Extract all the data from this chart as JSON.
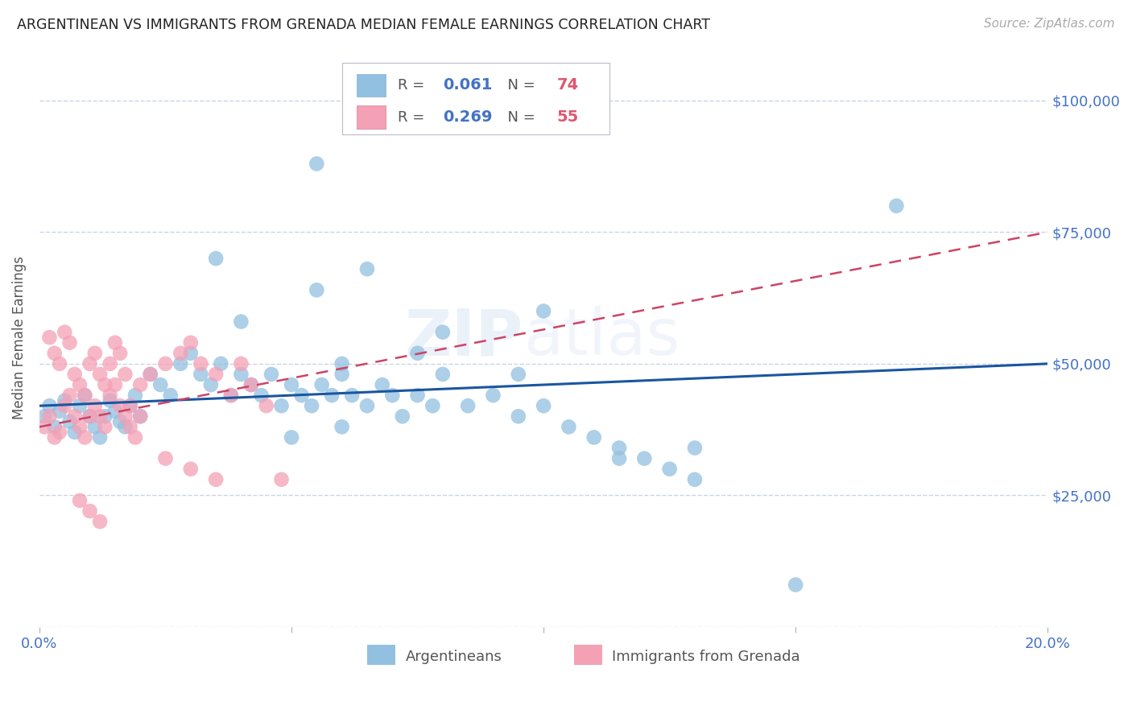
{
  "title": "ARGENTINEAN VS IMMIGRANTS FROM GRENADA MEDIAN FEMALE EARNINGS CORRELATION CHART",
  "source": "Source: ZipAtlas.com",
  "ylabel_label": "Median Female Earnings",
  "x_min": 0.0,
  "x_max": 0.2,
  "y_min": 0,
  "y_max": 110000,
  "blue_R": "0.061",
  "blue_N": "74",
  "pink_R": "0.269",
  "pink_N": "55",
  "blue_color": "#92c0e0",
  "pink_color": "#f4a0b5",
  "blue_line_color": "#1a56a0",
  "pink_line_color": "#cc4466",
  "tick_label_color": "#4472c4",
  "grid_color": "#c8d4e8",
  "background_color": "#ffffff",
  "blue_x": [
    0.001,
    0.002,
    0.003,
    0.004,
    0.005,
    0.006,
    0.007,
    0.008,
    0.009,
    0.01,
    0.011,
    0.012,
    0.013,
    0.014,
    0.015,
    0.016,
    0.017,
    0.018,
    0.019,
    0.02,
    0.022,
    0.024,
    0.026,
    0.028,
    0.03,
    0.032,
    0.034,
    0.036,
    0.038,
    0.04,
    0.042,
    0.044,
    0.046,
    0.048,
    0.05,
    0.052,
    0.054,
    0.056,
    0.058,
    0.06,
    0.062,
    0.065,
    0.068,
    0.07,
    0.072,
    0.075,
    0.078,
    0.08,
    0.085,
    0.09,
    0.095,
    0.1,
    0.105,
    0.11,
    0.115,
    0.12,
    0.125,
    0.13,
    0.05,
    0.06,
    0.055,
    0.065,
    0.035,
    0.04,
    0.08,
    0.1,
    0.17,
    0.055,
    0.06,
    0.075,
    0.095,
    0.115,
    0.13,
    0.15
  ],
  "blue_y": [
    40000,
    42000,
    38000,
    41000,
    43000,
    39000,
    37000,
    42000,
    44000,
    40000,
    38000,
    36000,
    40000,
    43000,
    41000,
    39000,
    38000,
    42000,
    44000,
    40000,
    48000,
    46000,
    44000,
    50000,
    52000,
    48000,
    46000,
    50000,
    44000,
    48000,
    46000,
    44000,
    48000,
    42000,
    46000,
    44000,
    42000,
    46000,
    44000,
    48000,
    44000,
    42000,
    46000,
    44000,
    40000,
    44000,
    42000,
    48000,
    42000,
    44000,
    40000,
    42000,
    38000,
    36000,
    34000,
    32000,
    30000,
    34000,
    36000,
    38000,
    64000,
    68000,
    70000,
    58000,
    56000,
    60000,
    80000,
    88000,
    50000,
    52000,
    48000,
    32000,
    28000,
    8000
  ],
  "pink_x": [
    0.001,
    0.002,
    0.003,
    0.004,
    0.005,
    0.006,
    0.007,
    0.008,
    0.009,
    0.01,
    0.011,
    0.012,
    0.013,
    0.014,
    0.015,
    0.016,
    0.017,
    0.018,
    0.019,
    0.02,
    0.002,
    0.003,
    0.004,
    0.005,
    0.006,
    0.007,
    0.008,
    0.009,
    0.01,
    0.011,
    0.012,
    0.013,
    0.014,
    0.015,
    0.016,
    0.017,
    0.018,
    0.02,
    0.022,
    0.025,
    0.028,
    0.03,
    0.032,
    0.035,
    0.038,
    0.04,
    0.042,
    0.045,
    0.048,
    0.025,
    0.03,
    0.035,
    0.008,
    0.01,
    0.012
  ],
  "pink_y": [
    38000,
    40000,
    36000,
    37000,
    42000,
    44000,
    40000,
    38000,
    36000,
    40000,
    42000,
    40000,
    38000,
    44000,
    46000,
    42000,
    40000,
    38000,
    36000,
    40000,
    55000,
    52000,
    50000,
    56000,
    54000,
    48000,
    46000,
    44000,
    50000,
    52000,
    48000,
    46000,
    50000,
    54000,
    52000,
    48000,
    42000,
    46000,
    48000,
    50000,
    52000,
    54000,
    50000,
    48000,
    44000,
    50000,
    46000,
    42000,
    28000,
    32000,
    30000,
    28000,
    24000,
    22000,
    20000
  ]
}
